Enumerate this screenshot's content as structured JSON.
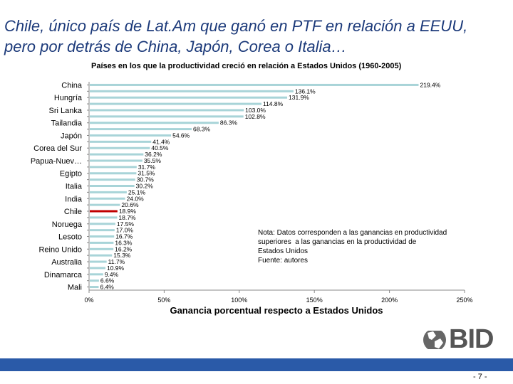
{
  "title": "Chile, único país de Lat.Am que ganó en PTF en relación a EEUU, pero por detrás de China, Japón, Corea o Italia…",
  "footer": {
    "logo_text": "BID",
    "page_number": "- 7 -"
  },
  "note": {
    "lines": [
      "Nota: Datos corresponden a las ganancias en productividad",
      "superiores  a las ganancias en la productividad de",
      "Estados Unidos",
      "Fuente: autores"
    ]
  },
  "colors": {
    "bar": "#a8d4d8",
    "highlight": "#c00000",
    "title": "#1c3a7a",
    "footer": "#2a5aa8"
  },
  "chart_data": {
    "type": "bar",
    "orientation": "horizontal",
    "title": "Países en los que la productividad creció en relación a Estados Unidos (1960-2005)",
    "xlabel": "Ganancia porcentual respecto a Estados Unidos",
    "xlim": [
      0,
      250
    ],
    "xticks": [
      0,
      50,
      100,
      150,
      200,
      250
    ],
    "xtick_labels": [
      "0%",
      "50%",
      "100%",
      "150%",
      "200%",
      "250%"
    ],
    "categories": [
      "China",
      "",
      "Hungría",
      "",
      "Sri Lanka",
      "",
      "Tailandia",
      "",
      "Japón",
      "",
      "Corea del Sur",
      "",
      "Papua-Nuev…",
      "",
      "Egipto",
      "",
      "Italia",
      "",
      "India",
      "",
      "Chile",
      "",
      "Noruega",
      "",
      "Lesoto",
      "",
      "Reino Unido",
      "",
      "Australia",
      "",
      "Dinamarca",
      "",
      "Mali"
    ],
    "values": [
      219.4,
      136.1,
      131.9,
      114.8,
      103.0,
      102.8,
      86.3,
      68.3,
      54.6,
      41.4,
      40.5,
      36.2,
      35.5,
      31.7,
      31.5,
      30.7,
      30.2,
      25.1,
      24.0,
      20.6,
      18.9,
      18.7,
      17.5,
      17.0,
      16.7,
      16.3,
      16.2,
      15.3,
      11.7,
      10.9,
      9.4,
      6.6,
      6.4
    ],
    "data_labels": [
      "219.4%",
      "136.1%",
      "131.9%",
      "114.8%",
      "103.0%",
      "102.8%",
      "86.3%",
      "68.3%",
      "54.6%",
      "41.4%",
      "40.5%",
      "36.2%",
      "35.5%",
      "31.7%",
      "31.5%",
      "30.7%",
      "30.2%",
      "25.1%",
      "24.0%",
      "20.6%",
      "18.9%",
      "18.7%",
      "17.5%",
      "17.0%",
      "16.7%",
      "16.3%",
      "16.2%",
      "15.3%",
      "11.7%",
      "10.9%",
      "9.4%",
      "6.6%",
      "6.4%"
    ],
    "highlight_category": "Chile"
  }
}
